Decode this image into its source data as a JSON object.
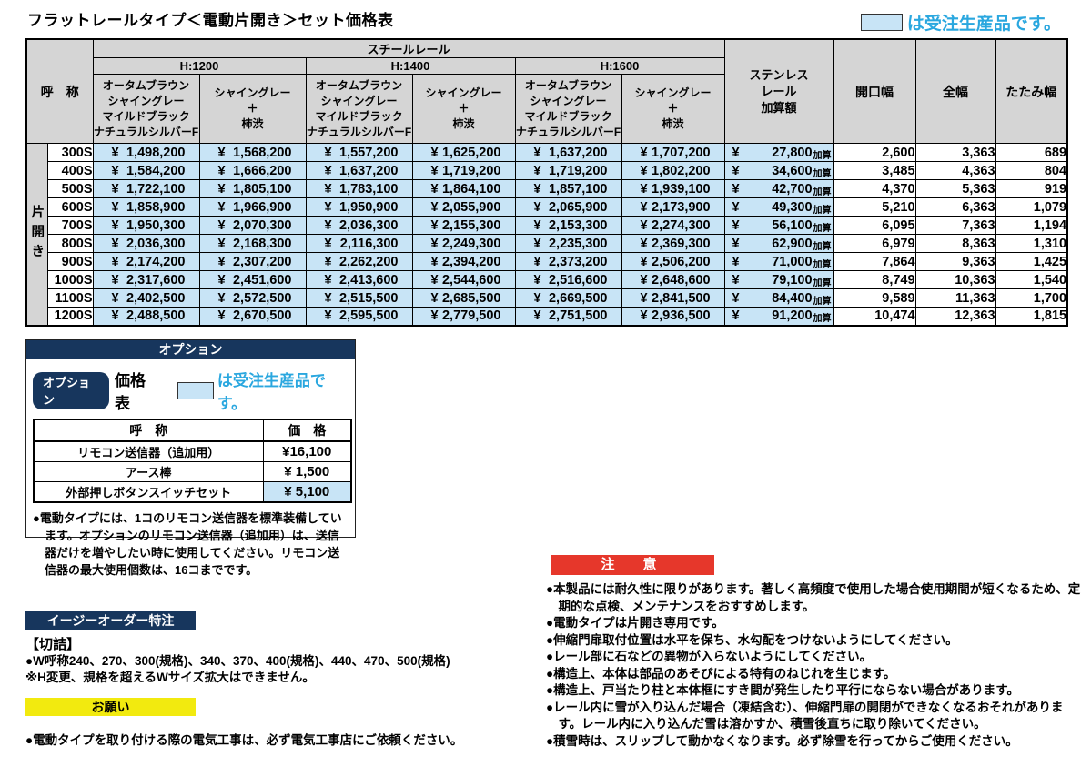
{
  "colors": {
    "accent_blue": "#2aa7df",
    "light_blue": "#c8e4f6",
    "header_gray": "#d5d5d5",
    "navy": "#17365d",
    "red": "#e6372b",
    "yellow": "#f2ea0f"
  },
  "page": {
    "title": "フラットレールタイプ＜電動片開き＞セット価格表",
    "legend_text": "は受注生産品です。"
  },
  "main_table": {
    "col_name_header": "呼　称",
    "rail_header": "スチールレール",
    "heights": [
      "H:1200",
      "H:1400",
      "H:1600"
    ],
    "colors_a": "オータムブラウン\nシャイングレー\nマイルドブラック\nナチュラルシルバーF",
    "colors_b": "シャイングレー\n＋\n柿渋",
    "stainless_header": "ステンレス\nレール\n加算額",
    "opening_header": "開口幅",
    "full_header": "全幅",
    "fold_header": "たたみ幅",
    "row_group_label": "片開き",
    "yen": "¥",
    "stainless_suffix": "加算",
    "rows": [
      {
        "name": "300S",
        "prices": [
          "1,498,200",
          "1,568,200",
          "1,557,200",
          "1,625,200",
          "1,637,200",
          "1,707,200"
        ],
        "stainless": "27,800",
        "opening": "2,600",
        "full": "3,363",
        "fold": "689"
      },
      {
        "name": "400S",
        "prices": [
          "1,584,200",
          "1,666,200",
          "1,637,200",
          "1,719,200",
          "1,719,200",
          "1,802,200"
        ],
        "stainless": "34,600",
        "opening": "3,485",
        "full": "4,363",
        "fold": "804"
      },
      {
        "name": "500S",
        "prices": [
          "1,722,100",
          "1,805,100",
          "1,783,100",
          "1,864,100",
          "1,857,100",
          "1,939,100"
        ],
        "stainless": "42,700",
        "opening": "4,370",
        "full": "5,363",
        "fold": "919"
      },
      {
        "name": "600S",
        "prices": [
          "1,858,900",
          "1,966,900",
          "1,950,900",
          "2,055,900",
          "2,065,900",
          "2,173,900"
        ],
        "stainless": "49,300",
        "opening": "5,210",
        "full": "6,363",
        "fold": "1,079"
      },
      {
        "name": "700S",
        "prices": [
          "1,950,300",
          "2,070,300",
          "2,036,300",
          "2,155,300",
          "2,153,300",
          "2,274,300"
        ],
        "stainless": "56,100",
        "opening": "6,095",
        "full": "7,363",
        "fold": "1,194"
      },
      {
        "name": "800S",
        "prices": [
          "2,036,300",
          "2,168,300",
          "2,116,300",
          "2,249,300",
          "2,235,300",
          "2,369,300"
        ],
        "stainless": "62,900",
        "opening": "6,979",
        "full": "8,363",
        "fold": "1,310"
      },
      {
        "name": "900S",
        "prices": [
          "2,174,200",
          "2,307,200",
          "2,262,200",
          "2,394,200",
          "2,373,200",
          "2,506,200"
        ],
        "stainless": "71,000",
        "opening": "7,864",
        "full": "9,363",
        "fold": "1,425"
      },
      {
        "name": "1000S",
        "prices": [
          "2,317,600",
          "2,451,600",
          "2,413,600",
          "2,544,600",
          "2,516,600",
          "2,648,600"
        ],
        "stainless": "79,100",
        "opening": "8,749",
        "full": "10,363",
        "fold": "1,540"
      },
      {
        "name": "1100S",
        "prices": [
          "2,402,500",
          "2,572,500",
          "2,515,500",
          "2,685,500",
          "2,669,500",
          "2,841,500"
        ],
        "stainless": "84,400",
        "opening": "9,589",
        "full": "11,363",
        "fold": "1,700"
      },
      {
        "name": "1200S",
        "prices": [
          "2,488,500",
          "2,670,500",
          "2,595,500",
          "2,779,500",
          "2,751,500",
          "2,936,500"
        ],
        "stainless": "91,200",
        "opening": "10,474",
        "full": "12,363",
        "fold": "1,815"
      }
    ]
  },
  "option": {
    "bar_title": "オプション",
    "badge_label": "オプション",
    "kakaku_label": "価格表",
    "legend_text": "は受注生産品です。",
    "table_headers": {
      "name": "呼　称",
      "price": "価　格"
    },
    "rows": [
      {
        "name": "リモコン送信器（追加用）",
        "price": "¥16,100",
        "made_to_order": false
      },
      {
        "name": "アース棒",
        "price": "¥ 1,500",
        "made_to_order": false
      },
      {
        "name": "外部押しボタンスイッチセット",
        "price": "¥ 5,100",
        "made_to_order": true
      }
    ],
    "note": "●電動タイプには、1コのリモコン送信器を標準装備しています。オプションのリモコン送信器（追加用）は、送信器だけを増やしたい時に使用してください。リモコン送信器の最大使用個数は、16コまでです。"
  },
  "caution": {
    "bar_title": "注　意",
    "bullets": [
      "●本製品には耐久性に限りがあります。著しく高頻度で使用した場合使用期間が短くなるため、定期的な点検、メンテナンスをおすすめします。",
      "●電動タイプは片開き専用です。",
      "●伸縮門扉取付位置は水平を保ち、水勾配をつけないようにしてください。",
      "●レール部に石などの異物が入らないようにしてください。",
      "●構造上、本体は部品のあそびによる特有のねじれを生じます。",
      "●構造上、戸当たり柱と本体框にすき間が発生したり平行にならない場合があります。",
      "●レール内に雪が入り込んだ場合（凍結含む）、伸縮門扉の開閉ができなくなるおそれがあります。レール内に入り込んだ雪は溶かすか、積雪後直ちに取り除いてください。",
      "●積雪時は、スリップして動かなくなります。必ず除雪を行ってからご使用ください。"
    ]
  },
  "easy_order": {
    "bar_title": "イージーオーダー特注",
    "heading": "【切詰】",
    "lines": [
      "●W呼称240、270、300(規格)、340、370、400(規格)、440、470、500(規格)",
      "※H変更、規格を超えるWサイズ拡大はできません。"
    ]
  },
  "request": {
    "bar_title": "お願い",
    "line": "●電動タイプを取り付ける際の電気工事は、必ず電気工事店にご依頼ください。"
  }
}
